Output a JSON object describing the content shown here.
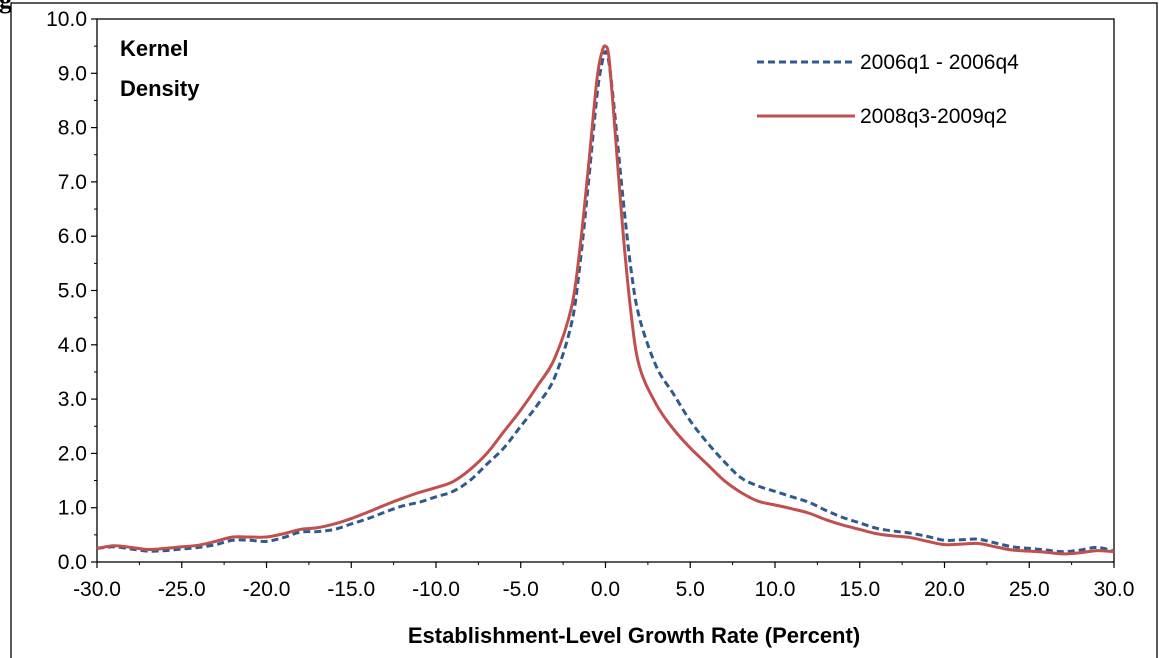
{
  "page": {
    "corner_text": "g"
  },
  "chart_data": {
    "type": "line",
    "title": "",
    "annotation": [
      "Kernel",
      "Density"
    ],
    "xlabel": "Establishment-Level Growth Rate (Percent)",
    "ylabel": "",
    "xlim": [
      -30,
      30
    ],
    "ylim": [
      0,
      10
    ],
    "xticks": [
      "-30.0",
      "-25.0",
      "-20.0",
      "-15.0",
      "-10.0",
      "-5.0",
      "0.0",
      "5.0",
      "10.0",
      "15.0",
      "20.0",
      "25.0",
      "30.0"
    ],
    "yticks": [
      "0.0",
      "1.0",
      "2.0",
      "3.0",
      "4.0",
      "5.0",
      "6.0",
      "7.0",
      "8.0",
      "9.0",
      "10.0"
    ],
    "grid": false,
    "legend_position": "top-right",
    "series": [
      {
        "name": "2006q1 - 2006q4",
        "color": "#2f5a8c",
        "style": "dashed",
        "points": [
          [
            -30,
            0.25
          ],
          [
            -29,
            0.28
          ],
          [
            -28,
            0.24
          ],
          [
            -27,
            0.2
          ],
          [
            -26,
            0.21
          ],
          [
            -25,
            0.24
          ],
          [
            -24,
            0.27
          ],
          [
            -23,
            0.32
          ],
          [
            -22,
            0.4
          ],
          [
            -21,
            0.4
          ],
          [
            -20,
            0.38
          ],
          [
            -19,
            0.45
          ],
          [
            -18,
            0.55
          ],
          [
            -17,
            0.56
          ],
          [
            -16,
            0.6
          ],
          [
            -15,
            0.7
          ],
          [
            -14,
            0.8
          ],
          [
            -13,
            0.92
          ],
          [
            -12,
            1.03
          ],
          [
            -11,
            1.1
          ],
          [
            -10,
            1.2
          ],
          [
            -9,
            1.3
          ],
          [
            -8,
            1.5
          ],
          [
            -7,
            1.8
          ],
          [
            -6,
            2.1
          ],
          [
            -5,
            2.5
          ],
          [
            -4,
            2.9
          ],
          [
            -3,
            3.4
          ],
          [
            -2,
            4.4
          ],
          [
            -1.5,
            5.5
          ],
          [
            -1,
            7.0
          ],
          [
            -0.5,
            8.6
          ],
          [
            -0.2,
            9.2
          ],
          [
            0,
            9.4
          ],
          [
            0.2,
            9.2
          ],
          [
            0.5,
            8.4
          ],
          [
            1,
            6.8
          ],
          [
            1.5,
            5.4
          ],
          [
            2,
            4.5
          ],
          [
            3,
            3.6
          ],
          [
            4,
            3.1
          ],
          [
            5,
            2.6
          ],
          [
            6,
            2.2
          ],
          [
            7,
            1.85
          ],
          [
            8,
            1.55
          ],
          [
            9,
            1.4
          ],
          [
            10,
            1.3
          ],
          [
            11,
            1.2
          ],
          [
            12,
            1.1
          ],
          [
            13,
            0.95
          ],
          [
            14,
            0.82
          ],
          [
            15,
            0.72
          ],
          [
            16,
            0.62
          ],
          [
            17,
            0.57
          ],
          [
            18,
            0.53
          ],
          [
            19,
            0.47
          ],
          [
            20,
            0.4
          ],
          [
            21,
            0.41
          ],
          [
            22,
            0.42
          ],
          [
            23,
            0.35
          ],
          [
            24,
            0.28
          ],
          [
            25,
            0.25
          ],
          [
            26,
            0.22
          ],
          [
            27,
            0.19
          ],
          [
            28,
            0.22
          ],
          [
            29,
            0.27
          ],
          [
            30,
            0.2
          ]
        ]
      },
      {
        "name": "2008q3-2009q2",
        "color": "#c0504d",
        "style": "solid",
        "points": [
          [
            -30,
            0.25
          ],
          [
            -29,
            0.3
          ],
          [
            -28,
            0.27
          ],
          [
            -27,
            0.23
          ],
          [
            -26,
            0.25
          ],
          [
            -25,
            0.28
          ],
          [
            -24,
            0.31
          ],
          [
            -23,
            0.38
          ],
          [
            -22,
            0.46
          ],
          [
            -21,
            0.46
          ],
          [
            -20,
            0.46
          ],
          [
            -19,
            0.52
          ],
          [
            -18,
            0.6
          ],
          [
            -17,
            0.63
          ],
          [
            -16,
            0.7
          ],
          [
            -15,
            0.8
          ],
          [
            -14,
            0.92
          ],
          [
            -13,
            1.05
          ],
          [
            -12,
            1.17
          ],
          [
            -11,
            1.28
          ],
          [
            -10,
            1.37
          ],
          [
            -9,
            1.48
          ],
          [
            -8,
            1.7
          ],
          [
            -7,
            2.0
          ],
          [
            -6,
            2.4
          ],
          [
            -5,
            2.8
          ],
          [
            -4,
            3.25
          ],
          [
            -3,
            3.75
          ],
          [
            -2,
            4.7
          ],
          [
            -1.5,
            5.8
          ],
          [
            -1,
            7.3
          ],
          [
            -0.5,
            8.9
          ],
          [
            -0.2,
            9.4
          ],
          [
            0,
            9.5
          ],
          [
            0.2,
            9.3
          ],
          [
            0.5,
            8.2
          ],
          [
            1,
            6.2
          ],
          [
            1.5,
            4.6
          ],
          [
            2,
            3.6
          ],
          [
            3,
            2.9
          ],
          [
            4,
            2.45
          ],
          [
            5,
            2.1
          ],
          [
            6,
            1.8
          ],
          [
            7,
            1.5
          ],
          [
            8,
            1.28
          ],
          [
            9,
            1.12
          ],
          [
            10,
            1.05
          ],
          [
            11,
            0.98
          ],
          [
            12,
            0.9
          ],
          [
            13,
            0.78
          ],
          [
            14,
            0.68
          ],
          [
            15,
            0.6
          ],
          [
            16,
            0.52
          ],
          [
            17,
            0.48
          ],
          [
            18,
            0.45
          ],
          [
            19,
            0.38
          ],
          [
            20,
            0.32
          ],
          [
            21,
            0.33
          ],
          [
            22,
            0.34
          ],
          [
            23,
            0.28
          ],
          [
            24,
            0.22
          ],
          [
            25,
            0.2
          ],
          [
            26,
            0.18
          ],
          [
            27,
            0.15
          ],
          [
            28,
            0.17
          ],
          [
            29,
            0.21
          ],
          [
            30,
            0.19
          ]
        ]
      }
    ]
  }
}
